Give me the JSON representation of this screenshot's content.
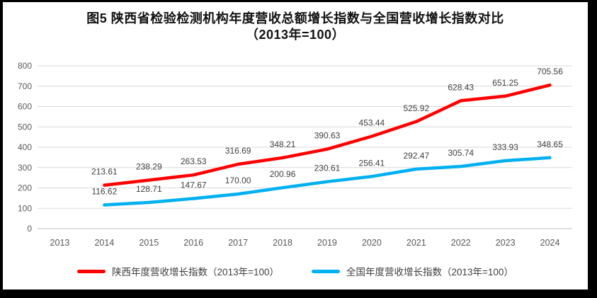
{
  "figure": {
    "title_line1": "图5  陕西省检验检测机构年度营收总额增长指数与全国营收增长指数对比",
    "title_line2": "（2013年=100）"
  },
  "chart_data": {
    "type": "line",
    "title": "图5 陕西省检验检测机构年度营收总额增长指数与全国营收增长指数对比（2013年=100）",
    "xlabel": "",
    "ylabel": "",
    "categories": [
      "2013",
      "2014",
      "2015",
      "2016",
      "2017",
      "2018",
      "2019",
      "2020",
      "2021",
      "2022",
      "2023",
      "2024"
    ],
    "ylim": [
      0,
      800
    ],
    "ytick_interval": 100,
    "yticks": [
      0,
      100,
      200,
      300,
      400,
      500,
      600,
      700,
      800
    ],
    "grid": true,
    "legend_position": "bottom",
    "data_labels_shown": true,
    "series": [
      {
        "name": "陕西年度营收增长指数（2013年=100）",
        "color": "#FF0000",
        "start_category": "2014",
        "values": [
          213.61,
          238.29,
          263.53,
          316.69,
          348.21,
          390.63,
          453.44,
          525.92,
          628.43,
          651.25,
          705.56
        ],
        "labels": [
          "213.61",
          "238.29",
          "263.53",
          "316.69",
          "348.21",
          "390.63",
          "453.44",
          "525.92",
          "628.43",
          "651.25",
          "705.56"
        ]
      },
      {
        "name": "全国年度营收增长指数（2013年=100）",
        "color": "#00B0F0",
        "start_category": "2014",
        "values": [
          116.62,
          128.71,
          147.67,
          170.0,
          200.96,
          230.61,
          256.41,
          292.47,
          305.74,
          333.93,
          348.65
        ],
        "labels": [
          "116.62",
          "128.71",
          "147.67",
          "170.00",
          "200.96",
          "230.61",
          "256.41",
          "292.47",
          "305.74",
          "333.93",
          "348.65"
        ]
      }
    ],
    "style": {
      "gridline_color": "#d9d9d9",
      "axis_line_color": "#bfbfbf",
      "tick_text_color": "#595959",
      "data_label_color": "#404040",
      "frame_color": "#000000",
      "background": "#ffffff"
    }
  }
}
